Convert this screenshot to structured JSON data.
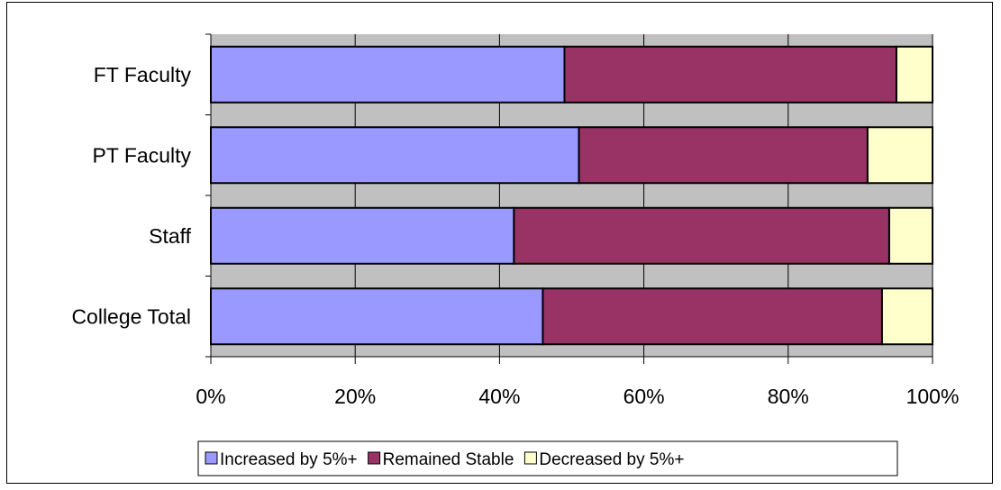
{
  "chart_data": {
    "type": "bar",
    "orientation": "horizontal",
    "stacked": true,
    "percent_stacked": true,
    "categories": [
      "FT Faculty",
      "PT Faculty",
      "Staff",
      "College Total"
    ],
    "series": [
      {
        "name": "Increased by 5%+",
        "color": "#9999ff",
        "values": [
          49,
          51,
          42,
          46
        ]
      },
      {
        "name": "Remained Stable",
        "color": "#993366",
        "values": [
          46,
          40,
          52,
          47
        ]
      },
      {
        "name": "Decreased by 5%+",
        "color": "#ffffcc",
        "values": [
          5,
          9,
          6,
          7
        ]
      }
    ],
    "xlim": [
      0,
      100
    ],
    "x_ticks": [
      "0%",
      "20%",
      "40%",
      "60%",
      "80%",
      "100%"
    ],
    "title": "",
    "xlabel": "",
    "ylabel": "",
    "grid": true,
    "plot_background": "#c0c0c0",
    "legend_position": "bottom"
  }
}
